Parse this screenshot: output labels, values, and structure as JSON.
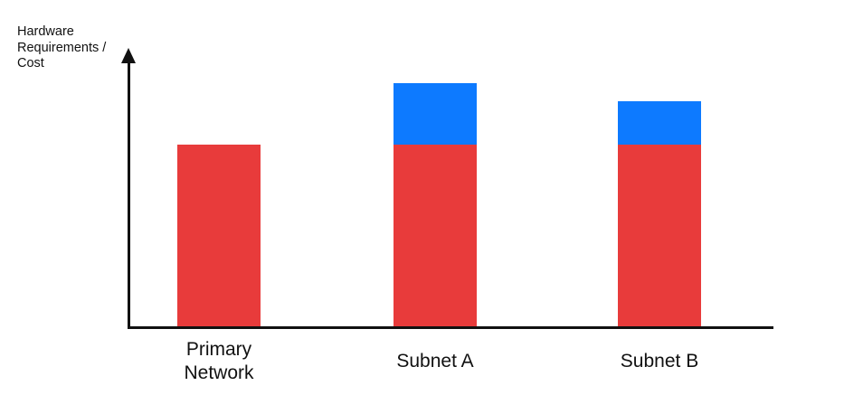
{
  "chart_data": {
    "type": "bar",
    "variant": "stacked-vertical",
    "title": "",
    "xlabel": "",
    "ylabel": "Hardware\nRequirements /\nCost",
    "categories": [
      "Primary Network",
      "Subnet A",
      "Subnet B"
    ],
    "series": [
      {
        "name": "red-base",
        "color": "#E83B3B",
        "values": [
          100,
          100,
          100
        ]
      },
      {
        "name": "blue-top",
        "color": "#0D7AFF",
        "values": [
          0,
          34,
          24
        ]
      }
    ],
    "value_units": "relative (axis unlabeled; red base segment normalized to 100)",
    "ylim": [
      0,
      150
    ],
    "grid": false,
    "legend": false,
    "y_axis_arrow": true,
    "axis_color": "#111111",
    "text_color": "#111111"
  }
}
